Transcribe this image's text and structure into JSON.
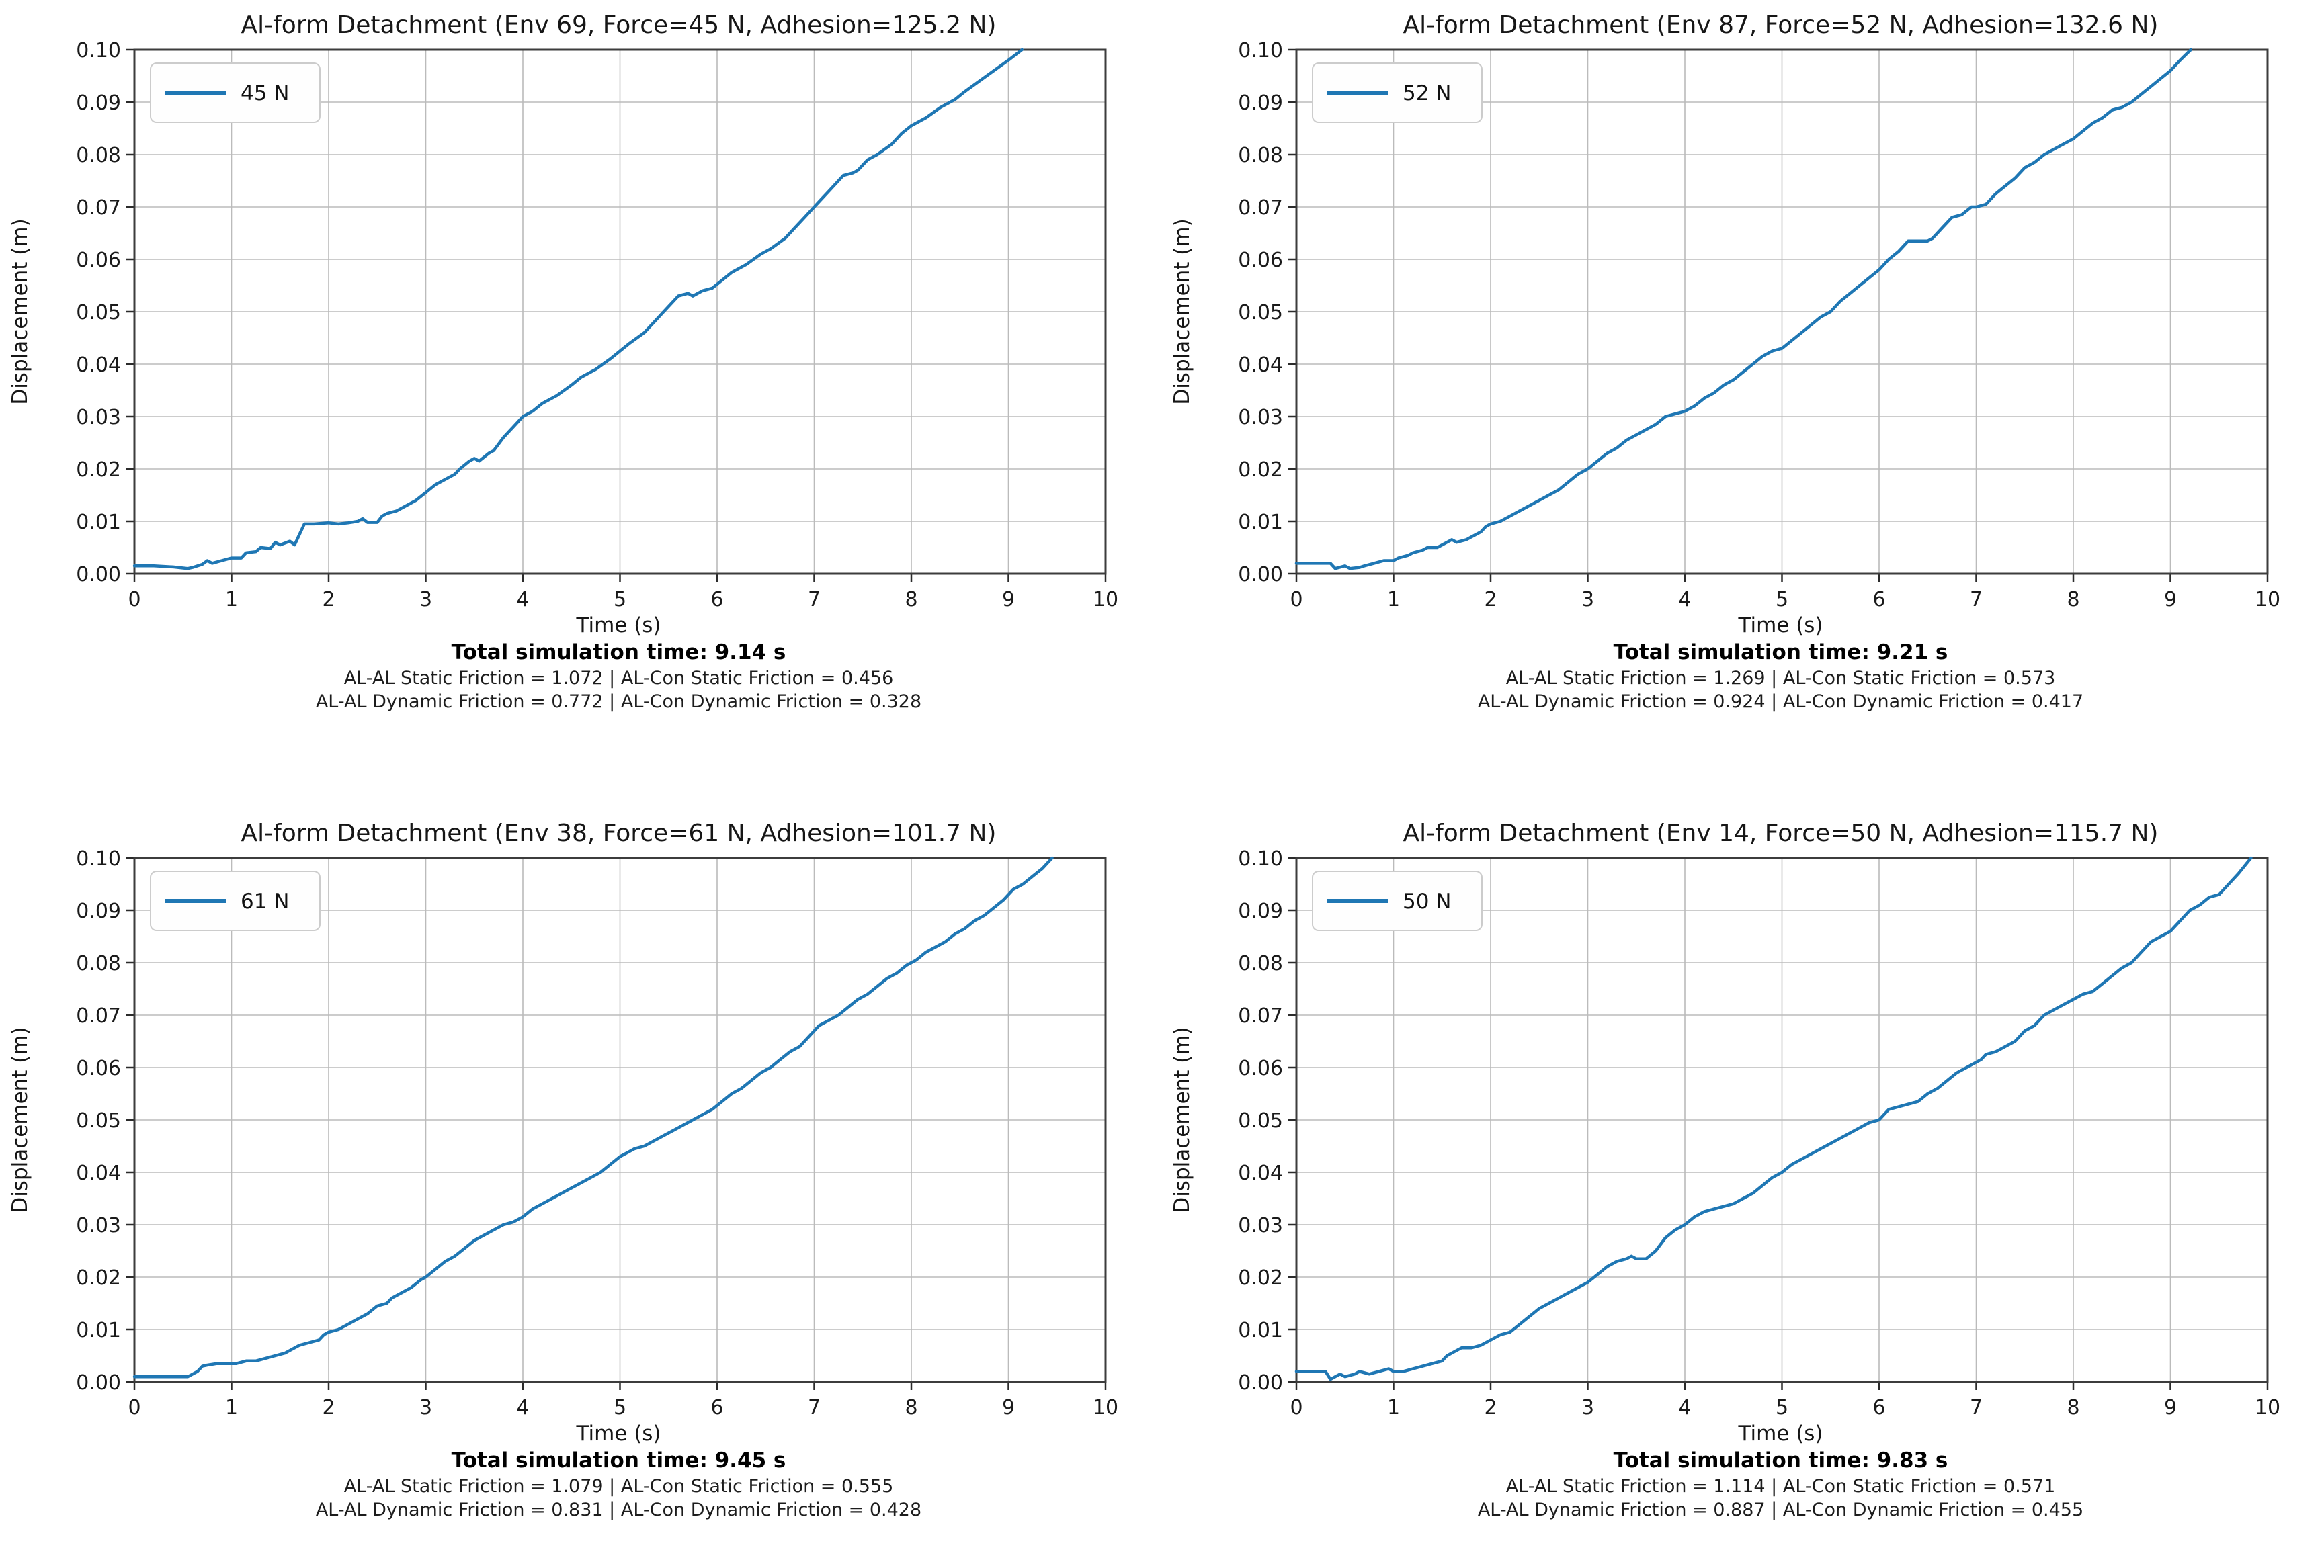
{
  "page": {
    "background": "#ffffff"
  },
  "chart_data": [
    {
      "type": "line",
      "title": "Al-form Detachment (Env 69, Force=45 N, Adhesion=125.2 N)",
      "xlabel": "Time (s)",
      "ylabel": "Displacement (m)",
      "legend": [
        "45 N"
      ],
      "legend_position": "upper left",
      "grid": true,
      "line_color": "#1f77b4",
      "xlim": [
        0,
        10
      ],
      "ylim": [
        0,
        0.1
      ],
      "xticks": [
        0,
        1,
        2,
        3,
        4,
        5,
        6,
        7,
        8,
        9,
        10
      ],
      "yticks": [
        "0.00",
        "0.01",
        "0.02",
        "0.03",
        "0.04",
        "0.05",
        "0.06",
        "0.07",
        "0.08",
        "0.09",
        "0.10"
      ],
      "total_time_label": "Total simulation time: 9.14 s",
      "friction_line1": "AL-AL Static Friction = 1.072 | AL-Con Static Friction = 0.456",
      "friction_line2": "AL-AL Dynamic Friction = 0.772 | AL-Con Dynamic Friction = 0.328",
      "series": [
        {
          "name": "45 N",
          "x": [
            0,
            0.2,
            0.4,
            0.55,
            0.6,
            0.7,
            0.75,
            0.8,
            0.9,
            1.0,
            1.1,
            1.15,
            1.25,
            1.3,
            1.4,
            1.45,
            1.5,
            1.6,
            1.65,
            1.7,
            1.75,
            1.85,
            2.0,
            2.1,
            2.2,
            2.3,
            2.35,
            2.4,
            2.5,
            2.55,
            2.6,
            2.7,
            2.8,
            2.9,
            3.0,
            3.1,
            3.2,
            3.3,
            3.35,
            3.45,
            3.5,
            3.55,
            3.65,
            3.7,
            3.8,
            3.9,
            4.0,
            4.1,
            4.2,
            4.35,
            4.5,
            4.6,
            4.75,
            4.9,
            5.0,
            5.1,
            5.25,
            5.35,
            5.45,
            5.55,
            5.6,
            5.7,
            5.75,
            5.85,
            5.95,
            6.05,
            6.15,
            6.3,
            6.45,
            6.55,
            6.7,
            6.8,
            6.9,
            7.0,
            7.05,
            7.15,
            7.25,
            7.3,
            7.4,
            7.45,
            7.55,
            7.65,
            7.8,
            7.9,
            8.0,
            8.15,
            8.3,
            8.45,
            8.55,
            8.7,
            8.85,
            9.0,
            9.14
          ],
          "y": [
            0.0015,
            0.0015,
            0.0013,
            0.001,
            0.0012,
            0.0018,
            0.0025,
            0.002,
            0.0025,
            0.003,
            0.003,
            0.004,
            0.0042,
            0.005,
            0.0048,
            0.006,
            0.0055,
            0.0062,
            0.0055,
            0.0075,
            0.0095,
            0.0095,
            0.0097,
            0.0095,
            0.0097,
            0.01,
            0.0105,
            0.0098,
            0.0098,
            0.011,
            0.0115,
            0.012,
            0.013,
            0.014,
            0.0155,
            0.017,
            0.018,
            0.019,
            0.02,
            0.0215,
            0.022,
            0.0215,
            0.023,
            0.0235,
            0.026,
            0.028,
            0.03,
            0.031,
            0.0325,
            0.034,
            0.036,
            0.0375,
            0.039,
            0.041,
            0.0425,
            0.044,
            0.046,
            0.048,
            0.05,
            0.052,
            0.053,
            0.0535,
            0.053,
            0.054,
            0.0545,
            0.056,
            0.0575,
            0.059,
            0.061,
            0.062,
            0.064,
            0.066,
            0.068,
            0.07,
            0.071,
            0.073,
            0.075,
            0.076,
            0.0765,
            0.077,
            0.079,
            0.08,
            0.082,
            0.084,
            0.0855,
            0.087,
            0.089,
            0.0905,
            0.092,
            0.094,
            0.096,
            0.098,
            0.1
          ]
        }
      ]
    },
    {
      "type": "line",
      "title": "Al-form Detachment (Env 87, Force=52 N, Adhesion=132.6 N)",
      "xlabel": "Time (s)",
      "ylabel": "Displacement (m)",
      "legend": [
        "52 N"
      ],
      "legend_position": "upper left",
      "grid": true,
      "line_color": "#1f77b4",
      "xlim": [
        0,
        10
      ],
      "ylim": [
        0,
        0.1
      ],
      "xticks": [
        0,
        1,
        2,
        3,
        4,
        5,
        6,
        7,
        8,
        9,
        10
      ],
      "yticks": [
        "0.00",
        "0.01",
        "0.02",
        "0.03",
        "0.04",
        "0.05",
        "0.06",
        "0.07",
        "0.08",
        "0.09",
        "0.10"
      ],
      "total_time_label": "Total simulation time: 9.21 s",
      "friction_line1": "AL-AL Static Friction = 1.269 | AL-Con Static Friction = 0.573",
      "friction_line2": "AL-AL Dynamic Friction = 0.924 | AL-Con Dynamic Friction = 0.417",
      "series": [
        {
          "name": "52 N",
          "x": [
            0,
            0.2,
            0.35,
            0.4,
            0.5,
            0.55,
            0.65,
            0.7,
            0.8,
            0.9,
            1.0,
            1.05,
            1.15,
            1.2,
            1.3,
            1.35,
            1.45,
            1.5,
            1.55,
            1.6,
            1.65,
            1.75,
            1.8,
            1.9,
            1.95,
            2.0,
            2.1,
            2.2,
            2.3,
            2.4,
            2.5,
            2.6,
            2.7,
            2.8,
            2.9,
            3.0,
            3.1,
            3.2,
            3.3,
            3.4,
            3.5,
            3.6,
            3.7,
            3.8,
            3.9,
            4.0,
            4.1,
            4.2,
            4.3,
            4.4,
            4.5,
            4.6,
            4.7,
            4.8,
            4.9,
            5.0,
            5.1,
            5.2,
            5.3,
            5.4,
            5.5,
            5.6,
            5.7,
            5.8,
            5.9,
            6.0,
            6.1,
            6.2,
            6.3,
            6.4,
            6.5,
            6.55,
            6.65,
            6.75,
            6.85,
            6.95,
            7.0,
            7.1,
            7.2,
            7.3,
            7.4,
            7.5,
            7.6,
            7.7,
            7.8,
            7.9,
            8.0,
            8.1,
            8.2,
            8.3,
            8.4,
            8.5,
            8.6,
            8.7,
            8.8,
            8.9,
            9.0,
            9.1,
            9.21
          ],
          "y": [
            0.002,
            0.002,
            0.002,
            0.001,
            0.0015,
            0.001,
            0.0012,
            0.0015,
            0.002,
            0.0025,
            0.0025,
            0.003,
            0.0035,
            0.004,
            0.0045,
            0.005,
            0.005,
            0.0055,
            0.006,
            0.0065,
            0.006,
            0.0065,
            0.007,
            0.008,
            0.009,
            0.0095,
            0.01,
            0.011,
            0.012,
            0.013,
            0.014,
            0.015,
            0.016,
            0.0175,
            0.019,
            0.02,
            0.0215,
            0.023,
            0.024,
            0.0255,
            0.0265,
            0.0275,
            0.0285,
            0.03,
            0.0305,
            0.031,
            0.032,
            0.0335,
            0.0345,
            0.036,
            0.037,
            0.0385,
            0.04,
            0.0415,
            0.0425,
            0.043,
            0.0445,
            0.046,
            0.0475,
            0.049,
            0.05,
            0.052,
            0.0535,
            0.055,
            0.0565,
            0.058,
            0.06,
            0.0615,
            0.0635,
            0.0635,
            0.0635,
            0.064,
            0.066,
            0.068,
            0.0685,
            0.07,
            0.07,
            0.0705,
            0.0725,
            0.074,
            0.0755,
            0.0775,
            0.0785,
            0.08,
            0.081,
            0.082,
            0.083,
            0.0845,
            0.086,
            0.087,
            0.0885,
            0.089,
            0.09,
            0.0915,
            0.093,
            0.0945,
            0.096,
            0.098,
            0.1
          ]
        }
      ]
    },
    {
      "type": "line",
      "title": "Al-form Detachment (Env 38, Force=61 N, Adhesion=101.7 N)",
      "xlabel": "Time (s)",
      "ylabel": "Displacement (m)",
      "legend": [
        "61 N"
      ],
      "legend_position": "upper left",
      "grid": true,
      "line_color": "#1f77b4",
      "xlim": [
        0,
        10
      ],
      "ylim": [
        0,
        0.1
      ],
      "xticks": [
        0,
        1,
        2,
        3,
        4,
        5,
        6,
        7,
        8,
        9,
        10
      ],
      "yticks": [
        "0.00",
        "0.01",
        "0.02",
        "0.03",
        "0.04",
        "0.05",
        "0.06",
        "0.07",
        "0.08",
        "0.09",
        "0.10"
      ],
      "total_time_label": "Total simulation time: 9.45 s",
      "friction_line1": "AL-AL Static Friction = 1.079 | AL-Con Static Friction = 0.555",
      "friction_line2": "AL-AL Dynamic Friction = 0.831 | AL-Con Dynamic Friction = 0.428",
      "series": [
        {
          "name": "61 N",
          "x": [
            0,
            0.2,
            0.4,
            0.55,
            0.6,
            0.65,
            0.7,
            0.75,
            0.85,
            0.95,
            1.05,
            1.15,
            1.25,
            1.35,
            1.45,
            1.55,
            1.6,
            1.7,
            1.8,
            1.9,
            1.95,
            2.0,
            2.1,
            2.2,
            2.3,
            2.4,
            2.5,
            2.6,
            2.65,
            2.75,
            2.85,
            2.95,
            3.0,
            3.1,
            3.2,
            3.3,
            3.4,
            3.5,
            3.6,
            3.7,
            3.8,
            3.9,
            4.0,
            4.1,
            4.2,
            4.3,
            4.4,
            4.5,
            4.6,
            4.7,
            4.8,
            4.9,
            5.0,
            5.1,
            5.15,
            5.25,
            5.35,
            5.45,
            5.55,
            5.65,
            5.75,
            5.85,
            5.95,
            6.05,
            6.15,
            6.25,
            6.35,
            6.45,
            6.55,
            6.65,
            6.75,
            6.85,
            6.95,
            7.05,
            7.15,
            7.25,
            7.35,
            7.45,
            7.55,
            7.65,
            7.75,
            7.85,
            7.95,
            8.05,
            8.15,
            8.25,
            8.35,
            8.45,
            8.55,
            8.65,
            8.75,
            8.85,
            8.95,
            9.05,
            9.15,
            9.25,
            9.35,
            9.45
          ],
          "y": [
            0.001,
            0.001,
            0.001,
            0.001,
            0.0015,
            0.002,
            0.003,
            0.0032,
            0.0035,
            0.0035,
            0.0035,
            0.004,
            0.004,
            0.0045,
            0.005,
            0.0055,
            0.006,
            0.007,
            0.0075,
            0.008,
            0.009,
            0.0095,
            0.01,
            0.011,
            0.012,
            0.013,
            0.0145,
            0.015,
            0.016,
            0.017,
            0.018,
            0.0195,
            0.02,
            0.0215,
            0.023,
            0.024,
            0.0255,
            0.027,
            0.028,
            0.029,
            0.03,
            0.0305,
            0.0315,
            0.033,
            0.034,
            0.035,
            0.036,
            0.037,
            0.038,
            0.039,
            0.04,
            0.0415,
            0.043,
            0.044,
            0.0445,
            0.045,
            0.046,
            0.047,
            0.048,
            0.049,
            0.05,
            0.051,
            0.052,
            0.0535,
            0.055,
            0.056,
            0.0575,
            0.059,
            0.06,
            0.0615,
            0.063,
            0.064,
            0.066,
            0.068,
            0.069,
            0.07,
            0.0715,
            0.073,
            0.074,
            0.0755,
            0.077,
            0.078,
            0.0795,
            0.0805,
            0.082,
            0.083,
            0.084,
            0.0855,
            0.0865,
            0.088,
            0.089,
            0.0905,
            0.092,
            0.094,
            0.095,
            0.0965,
            0.098,
            0.1
          ]
        }
      ]
    },
    {
      "type": "line",
      "title": "Al-form Detachment (Env 14, Force=50 N, Adhesion=115.7 N)",
      "xlabel": "Time (s)",
      "ylabel": "Displacement (m)",
      "legend": [
        "50 N"
      ],
      "legend_position": "upper left",
      "grid": true,
      "line_color": "#1f77b4",
      "xlim": [
        0,
        10
      ],
      "ylim": [
        0,
        0.1
      ],
      "xticks": [
        0,
        1,
        2,
        3,
        4,
        5,
        6,
        7,
        8,
        9,
        10
      ],
      "yticks": [
        "0.00",
        "0.01",
        "0.02",
        "0.03",
        "0.04",
        "0.05",
        "0.06",
        "0.07",
        "0.08",
        "0.09",
        "0.10"
      ],
      "total_time_label": "Total simulation time: 9.83 s",
      "friction_line1": "AL-AL Static Friction = 1.114 | AL-Con Static Friction = 0.571",
      "friction_line2": "AL-AL Dynamic Friction = 0.887 | AL-Con Dynamic Friction = 0.455",
      "series": [
        {
          "name": "50 N",
          "x": [
            0,
            0.15,
            0.3,
            0.35,
            0.4,
            0.45,
            0.5,
            0.6,
            0.65,
            0.75,
            0.85,
            0.95,
            1.0,
            1.1,
            1.2,
            1.3,
            1.4,
            1.5,
            1.55,
            1.65,
            1.7,
            1.8,
            1.9,
            1.95,
            2.05,
            2.1,
            2.2,
            2.3,
            2.4,
            2.5,
            2.6,
            2.7,
            2.8,
            2.9,
            3.0,
            3.1,
            3.2,
            3.3,
            3.4,
            3.45,
            3.5,
            3.6,
            3.7,
            3.8,
            3.9,
            4.0,
            4.1,
            4.2,
            4.3,
            4.4,
            4.5,
            4.6,
            4.7,
            4.8,
            4.9,
            5.0,
            5.1,
            5.2,
            5.3,
            5.4,
            5.5,
            5.6,
            5.7,
            5.8,
            5.9,
            6.0,
            6.1,
            6.2,
            6.3,
            6.4,
            6.5,
            6.6,
            6.7,
            6.8,
            6.9,
            7.0,
            7.05,
            7.1,
            7.2,
            7.3,
            7.4,
            7.5,
            7.6,
            7.7,
            7.8,
            7.9,
            8.0,
            8.1,
            8.2,
            8.3,
            8.4,
            8.5,
            8.6,
            8.7,
            8.8,
            8.9,
            9.0,
            9.1,
            9.2,
            9.3,
            9.4,
            9.5,
            9.6,
            9.7,
            9.83
          ],
          "y": [
            0.002,
            0.002,
            0.002,
            0.0005,
            0.001,
            0.0015,
            0.001,
            0.0015,
            0.002,
            0.0015,
            0.002,
            0.0025,
            0.002,
            0.002,
            0.0025,
            0.003,
            0.0035,
            0.004,
            0.005,
            0.006,
            0.0065,
            0.0065,
            0.007,
            0.0075,
            0.0085,
            0.009,
            0.0095,
            0.011,
            0.0125,
            0.014,
            0.015,
            0.016,
            0.017,
            0.018,
            0.019,
            0.0205,
            0.022,
            0.023,
            0.0235,
            0.024,
            0.0235,
            0.0235,
            0.025,
            0.0275,
            0.029,
            0.03,
            0.0315,
            0.0325,
            0.033,
            0.0335,
            0.034,
            0.035,
            0.036,
            0.0375,
            0.039,
            0.04,
            0.0415,
            0.0425,
            0.0435,
            0.0445,
            0.0455,
            0.0465,
            0.0475,
            0.0485,
            0.0495,
            0.05,
            0.052,
            0.0525,
            0.053,
            0.0535,
            0.055,
            0.056,
            0.0575,
            0.059,
            0.06,
            0.061,
            0.0615,
            0.0625,
            0.063,
            0.064,
            0.065,
            0.067,
            0.068,
            0.07,
            0.071,
            0.072,
            0.073,
            0.074,
            0.0745,
            0.076,
            0.0775,
            0.079,
            0.08,
            0.082,
            0.084,
            0.085,
            0.086,
            0.088,
            0.09,
            0.091,
            0.0925,
            0.093,
            0.095,
            0.097,
            0.1
          ]
        }
      ]
    }
  ]
}
